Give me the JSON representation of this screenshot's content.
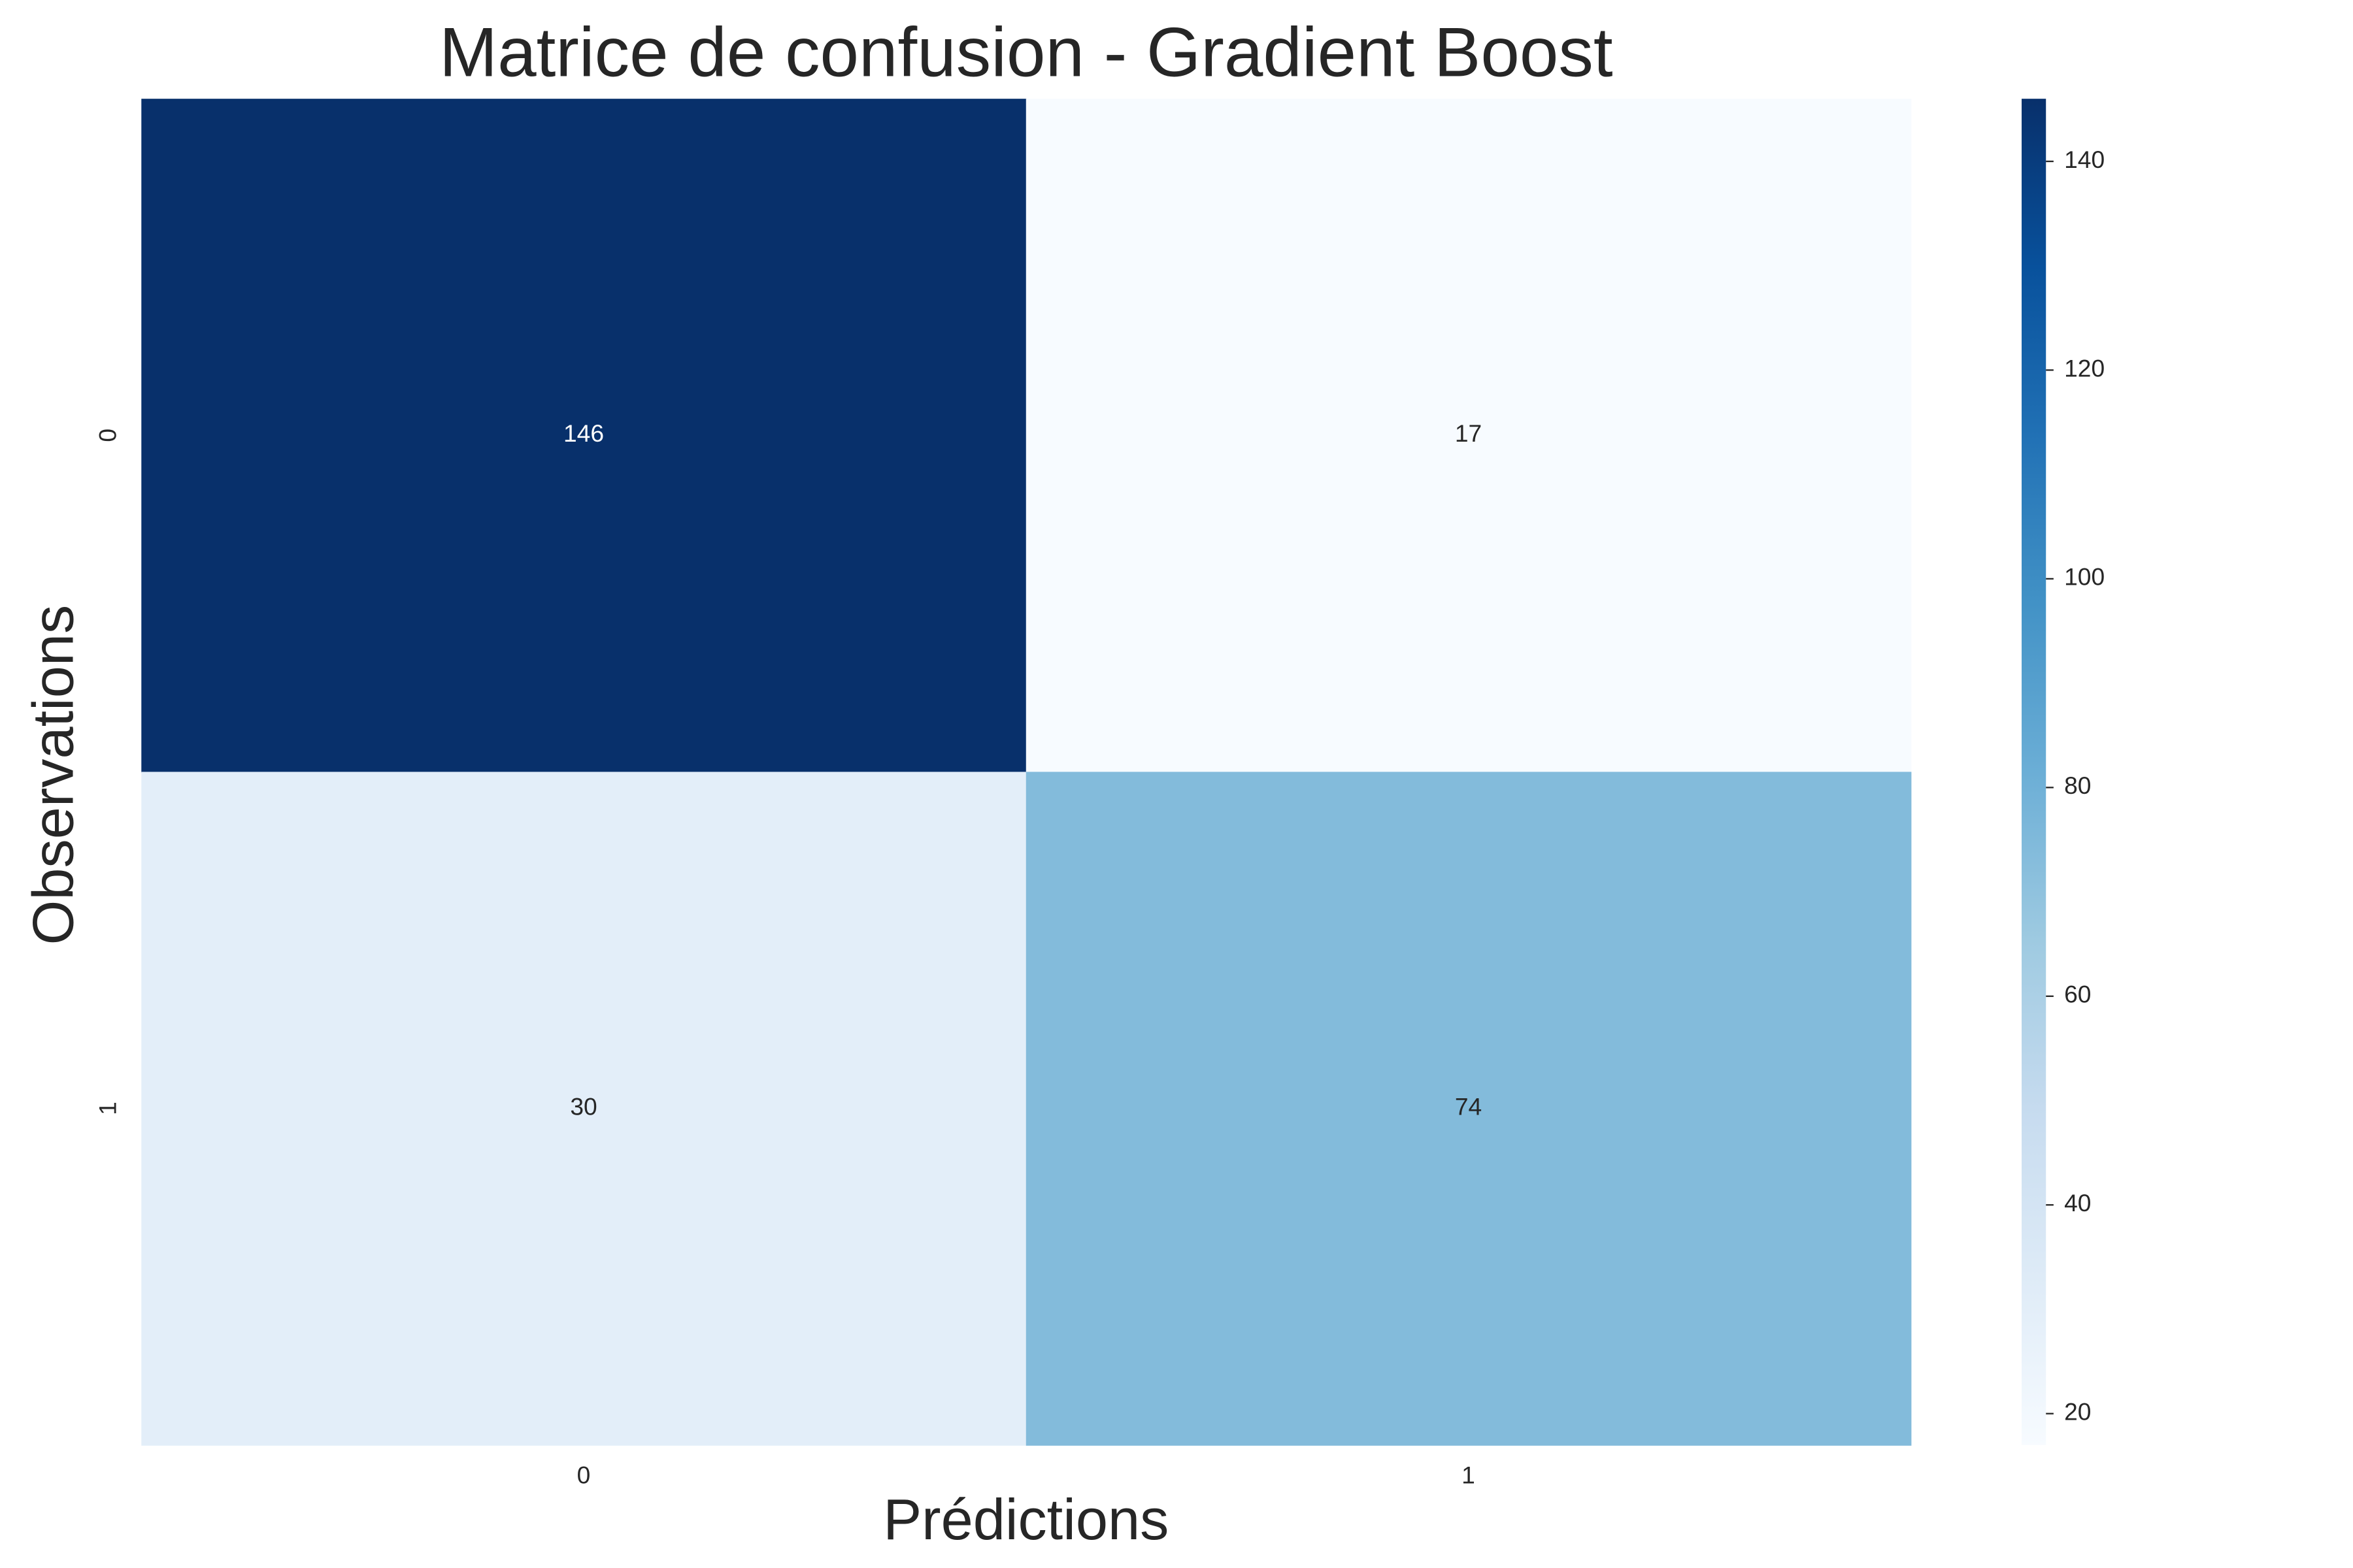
{
  "chart_data": {
    "type": "heatmap",
    "title": "Matrice de confusion - Gradient Boost",
    "x_label": "Prédictions",
    "y_label": "Observations",
    "x_categories": [
      "0",
      "1"
    ],
    "y_categories": [
      "0",
      "1"
    ],
    "values": [
      [
        146,
        17
      ],
      [
        30,
        74
      ]
    ],
    "colormap": [
      "#f7fbff",
      "#deebf7",
      "#c6dbef",
      "#9ecae1",
      "#6baed6",
      "#4292c6",
      "#2171b5",
      "#08519c",
      "#08306b"
    ],
    "clim": [
      17,
      146
    ],
    "cticks": [
      20,
      40,
      60,
      80,
      100,
      120,
      140
    ]
  }
}
